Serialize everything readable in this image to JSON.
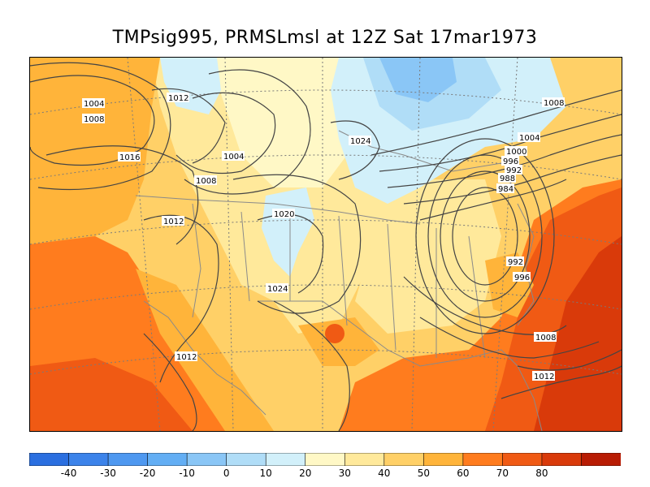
{
  "title": "TMPsig995, PRMSLmsl at 12Z Sat 17mar1973",
  "colorbar": {
    "colors": [
      "#2b6fe0",
      "#3c83ea",
      "#4e98f0",
      "#63aef4",
      "#8ac6f6",
      "#b0ddf7",
      "#d2f0fa",
      "#fff8c6",
      "#ffe99b",
      "#ffd067",
      "#ffb43a",
      "#ff7c1e",
      "#f05a14",
      "#d93a0a",
      "#b81c04"
    ],
    "labels": [
      "-40",
      "-30",
      "-20",
      "-10",
      "0",
      "10",
      "20",
      "30",
      "40",
      "50",
      "60",
      "70",
      "80"
    ]
  },
  "isobar_labels": [
    "1004",
    "1008",
    "1012",
    "1016",
    "1004",
    "1008",
    "1012",
    "1020",
    "1024",
    "1024",
    "1008",
    "1004",
    "1000",
    "996",
    "992",
    "988",
    "984",
    "992",
    "996",
    "1012",
    "1008",
    "1012"
  ]
}
